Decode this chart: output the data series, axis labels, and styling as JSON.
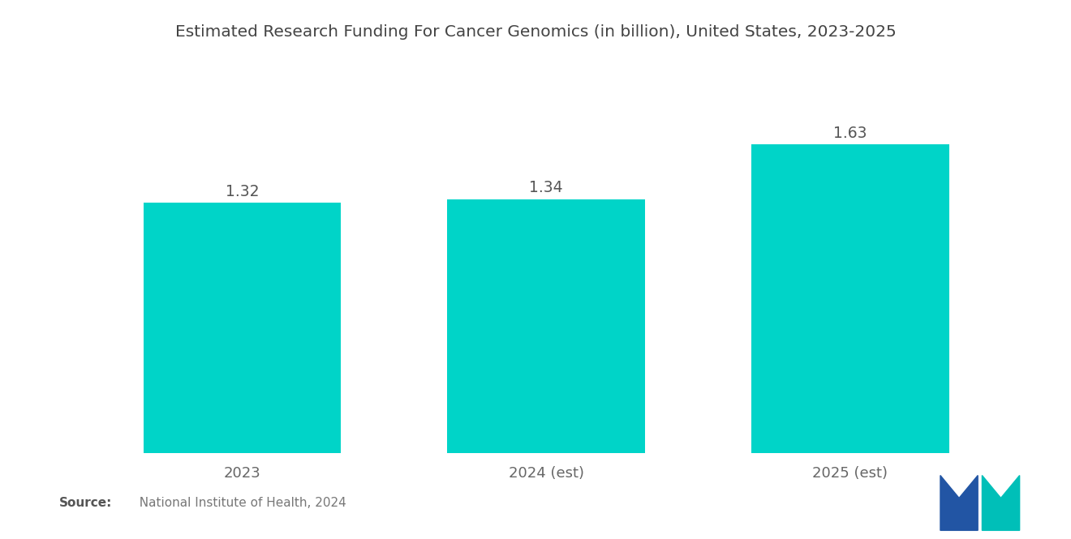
{
  "title": "Estimated Research Funding For Cancer Genomics (in billion), United States, 2023-2025",
  "categories": [
    "2023",
    "2024 (est)",
    "2025 (est)"
  ],
  "values": [
    1.32,
    1.34,
    1.63
  ],
  "bar_color": "#00D4C8",
  "bar_width": 0.65,
  "value_labels": [
    "1.32",
    "1.34",
    "1.63"
  ],
  "ylim": [
    0,
    1.85
  ],
  "source_bold": "Source:",
  "source_rest": "  National Institute of Health, 2024",
  "title_fontsize": 14.5,
  "label_fontsize": 13.5,
  "tick_fontsize": 13,
  "background_color": "#ffffff",
  "logo_blue": "#2255A4",
  "logo_teal": "#00BFB8"
}
